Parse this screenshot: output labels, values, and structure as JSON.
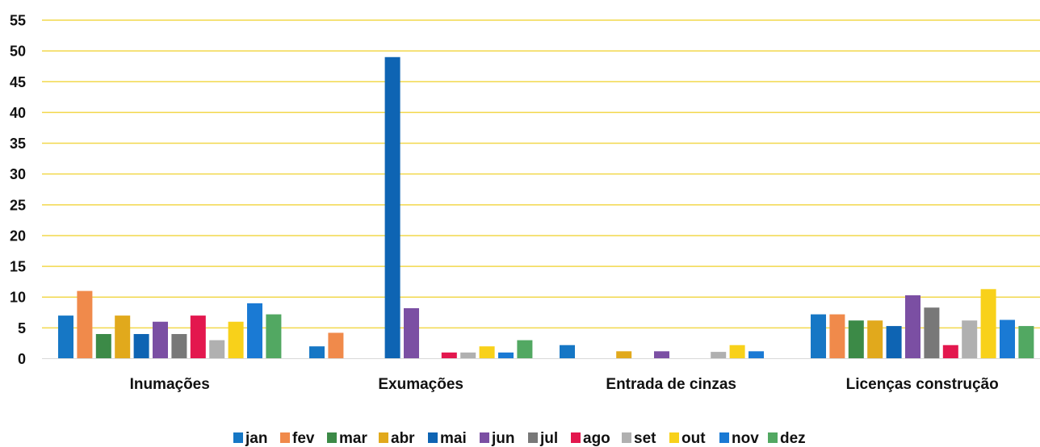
{
  "chart_data": {
    "type": "bar",
    "categories": [
      "Inumações",
      "Exumações",
      "Entrada de cinzas",
      "Licenças construção"
    ],
    "ylim": [
      0,
      55
    ],
    "yticks": [
      0,
      5,
      10,
      15,
      20,
      25,
      30,
      35,
      40,
      45,
      50,
      55
    ],
    "grid": true,
    "legend_position": "bottom",
    "series": [
      {
        "name": "jan",
        "color": "#1677c5",
        "values": [
          7,
          2,
          2.2,
          7.2
        ]
      },
      {
        "name": "fev",
        "color": "#f08a4b",
        "values": [
          11,
          4.2,
          0,
          7.2
        ]
      },
      {
        "name": "mar",
        "color": "#3c8a47",
        "values": [
          4,
          0,
          0,
          6.2
        ]
      },
      {
        "name": "abr",
        "color": "#e1a91c",
        "values": [
          7,
          0,
          1.2,
          6.2
        ]
      },
      {
        "name": "mai",
        "color": "#0e64b3",
        "values": [
          4,
          49,
          0,
          5.3
        ]
      },
      {
        "name": "jun",
        "color": "#7b4fa3",
        "values": [
          6,
          8.2,
          1.2,
          10.3
        ]
      },
      {
        "name": "jul",
        "color": "#787878",
        "values": [
          4,
          0,
          0,
          8.3
        ]
      },
      {
        "name": "ago",
        "color": "#e3174e",
        "values": [
          7,
          1,
          0,
          2.2
        ]
      },
      {
        "name": "set",
        "color": "#b0b0b0",
        "values": [
          3,
          1,
          1.1,
          6.2
        ]
      },
      {
        "name": "out",
        "color": "#f8d11a",
        "values": [
          6,
          2,
          2.2,
          11.3
        ]
      },
      {
        "name": "nov",
        "color": "#1a7ad4",
        "values": [
          9,
          1,
          1.2,
          6.3
        ]
      },
      {
        "name": "dez",
        "color": "#52a862",
        "values": [
          7.2,
          3,
          0,
          5.3
        ]
      }
    ]
  }
}
